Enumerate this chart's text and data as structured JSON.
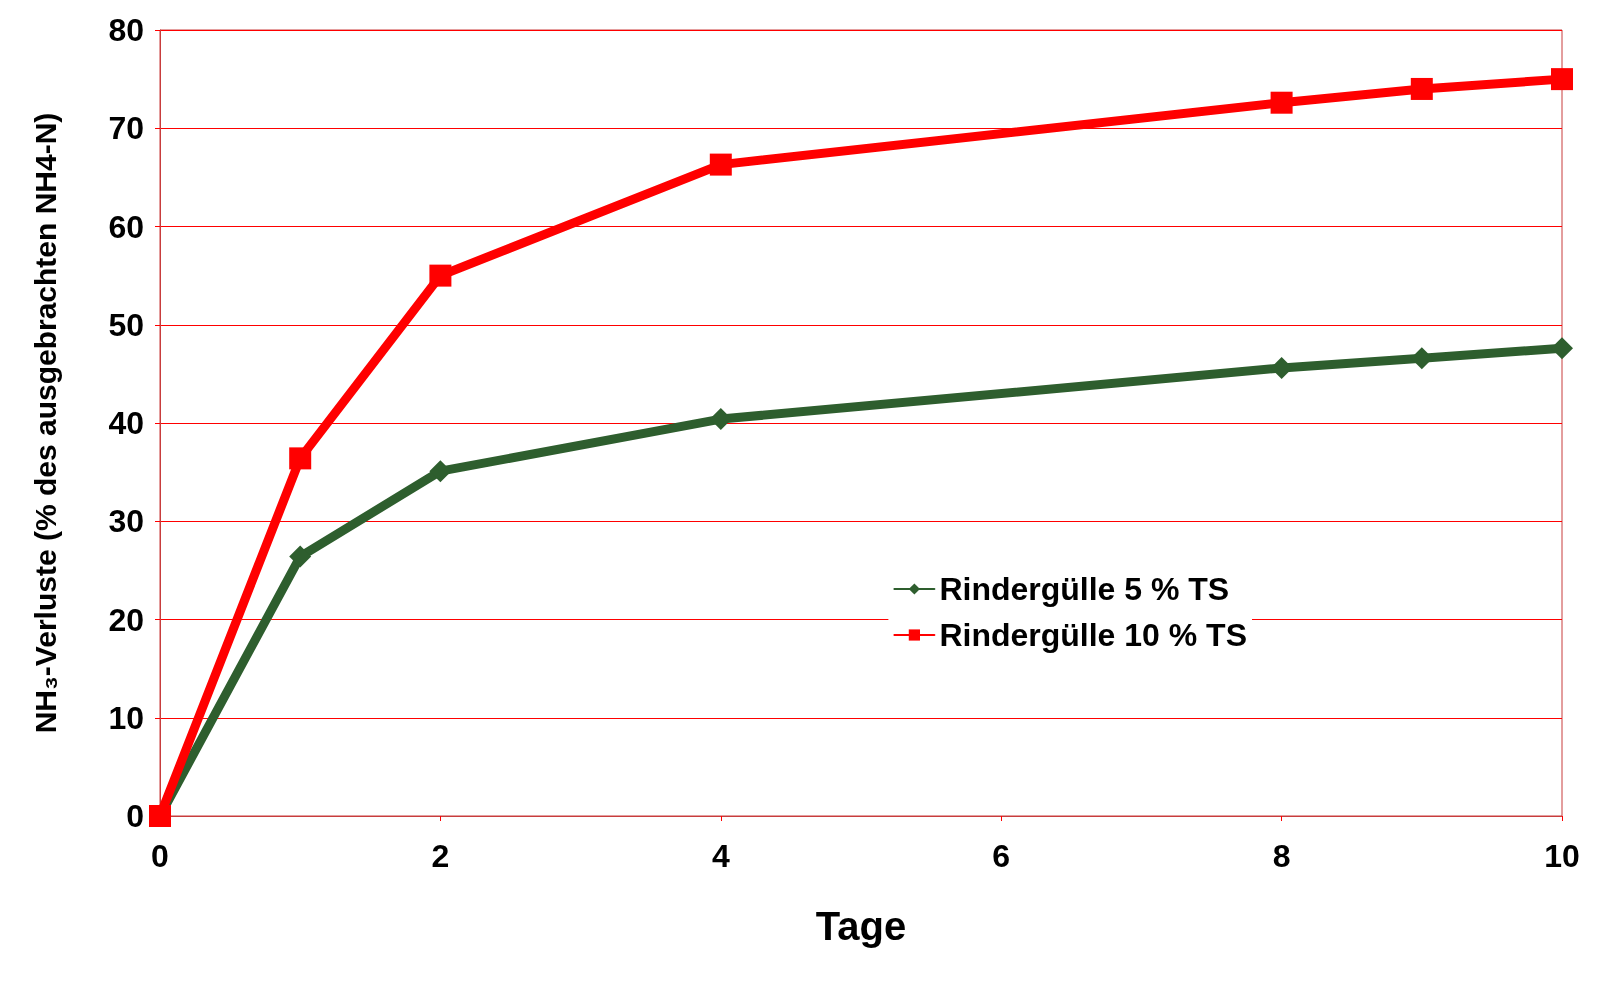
{
  "chart_data": {
    "type": "line",
    "xlabel": "Tage",
    "ylabel": "NH₃-Verluste (% des ausgebrachten NH4-N)",
    "x": [
      0,
      1,
      2,
      4,
      8,
      9,
      10
    ],
    "series": [
      {
        "name": "Rindergülle 5 % TS",
        "color": "#2e5e2e",
        "marker": "diamond",
        "values": [
          0,
          26.4,
          35.1,
          40.4,
          45.6,
          46.6,
          47.6
        ]
      },
      {
        "name": "Rindergülle 10 % TS",
        "color": "#ff0000",
        "marker": "square",
        "values": [
          0,
          36.4,
          55,
          66.3,
          72.6,
          74,
          75
        ]
      }
    ],
    "xlim": [
      0,
      10
    ],
    "xticks": [
      0,
      2,
      4,
      6,
      8,
      10
    ],
    "ylim": [
      0,
      80
    ],
    "yticks": [
      0,
      10,
      20,
      30,
      40,
      50,
      60,
      70,
      80
    ],
    "grid": "y",
    "legend": "bottom right",
    "line_style": "solid"
  }
}
